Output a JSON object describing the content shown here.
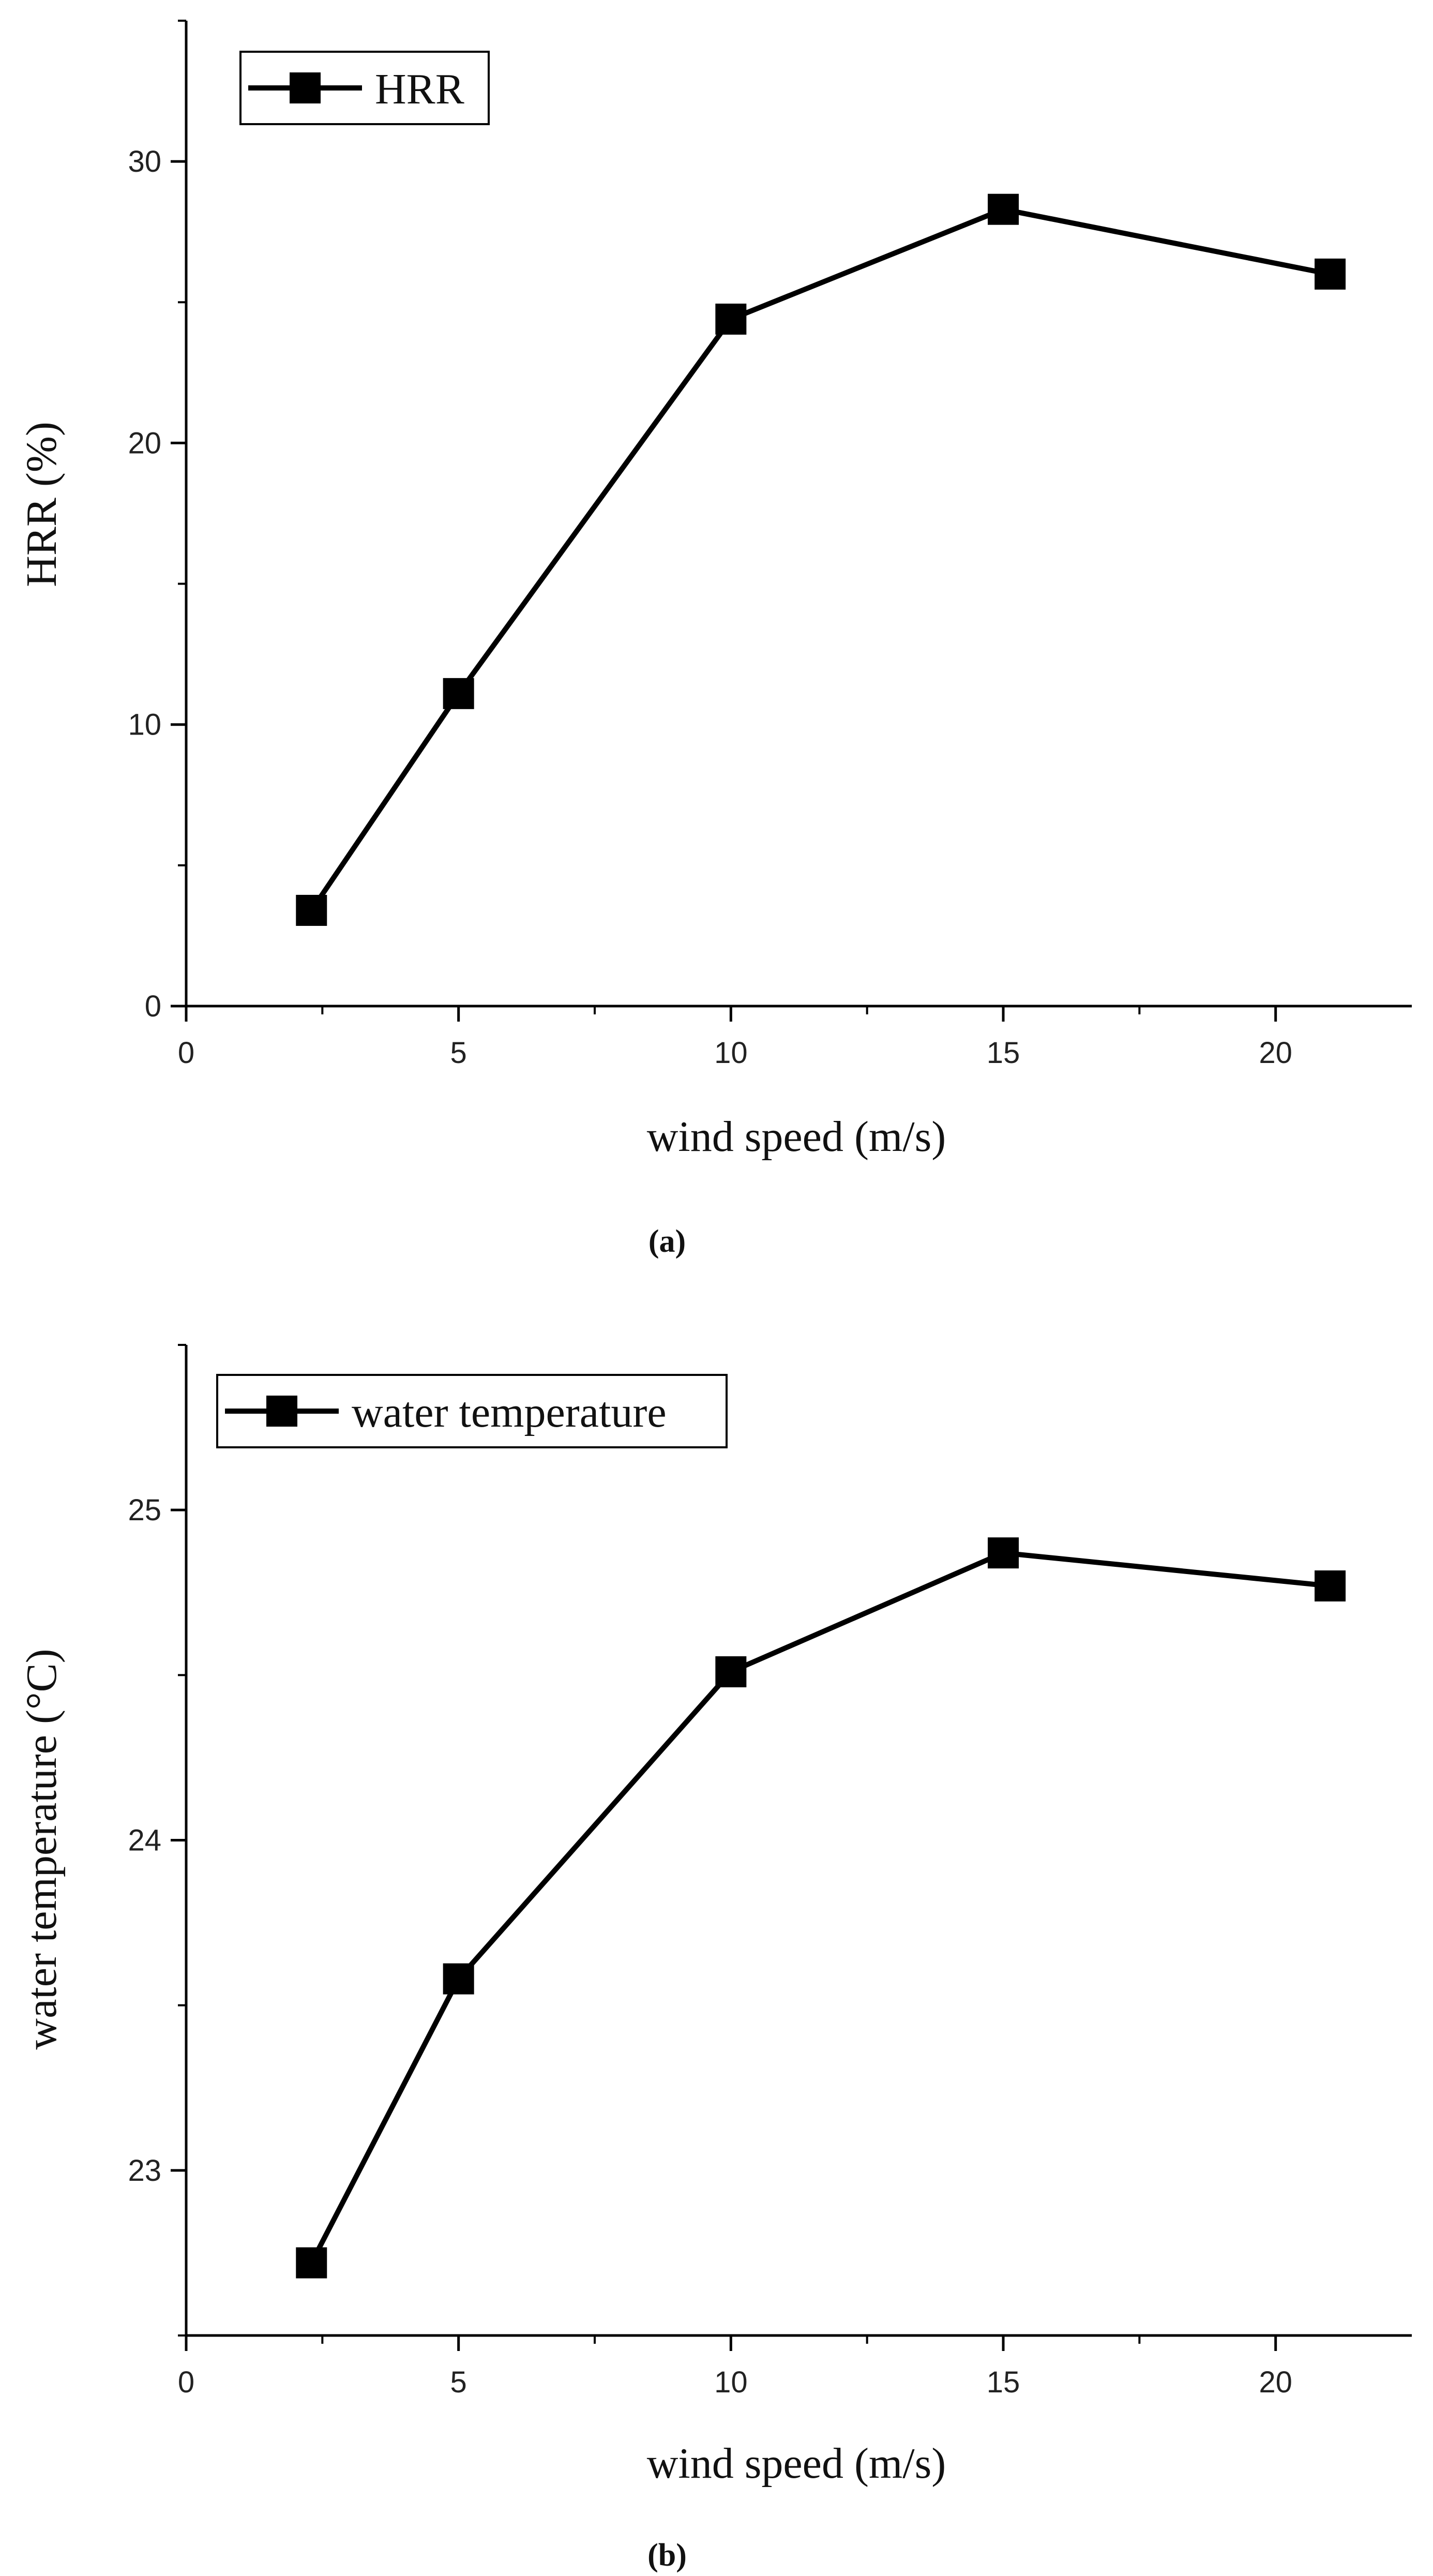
{
  "chart_data": [
    {
      "type": "line",
      "panel_label": "(a)",
      "xlabel": "wind speed (m/s)",
      "ylabel": "HRR (%)",
      "xlim": [
        0,
        22.5
      ],
      "ylim": [
        0,
        35
      ],
      "xticks": [
        0,
        5,
        10,
        15,
        20
      ],
      "yticks": [
        0,
        10,
        20,
        30
      ],
      "grid": false,
      "legend_position": "top-left",
      "series": [
        {
          "name": "HRR",
          "color": "#000000",
          "marker": "square",
          "x": [
            2.3,
            5,
            10,
            15,
            21
          ],
          "y": [
            3.4,
            11.1,
            24.4,
            28.3,
            26.0
          ]
        }
      ]
    },
    {
      "type": "line",
      "panel_label": "(b)",
      "xlabel": "wind speed (m/s)",
      "ylabel": "water temperature (°C)",
      "xlim": [
        0,
        22.5
      ],
      "ylim": [
        22.5,
        25.5
      ],
      "xticks": [
        0,
        5,
        10,
        15,
        20
      ],
      "yticks": [
        23,
        24,
        25
      ],
      "grid": false,
      "legend_position": "top-left",
      "series": [
        {
          "name": "water temperature",
          "color": "#000000",
          "marker": "square",
          "x": [
            2.3,
            5,
            10,
            15,
            21
          ],
          "y": [
            22.72,
            23.58,
            24.51,
            24.87,
            24.77
          ]
        }
      ]
    }
  ]
}
